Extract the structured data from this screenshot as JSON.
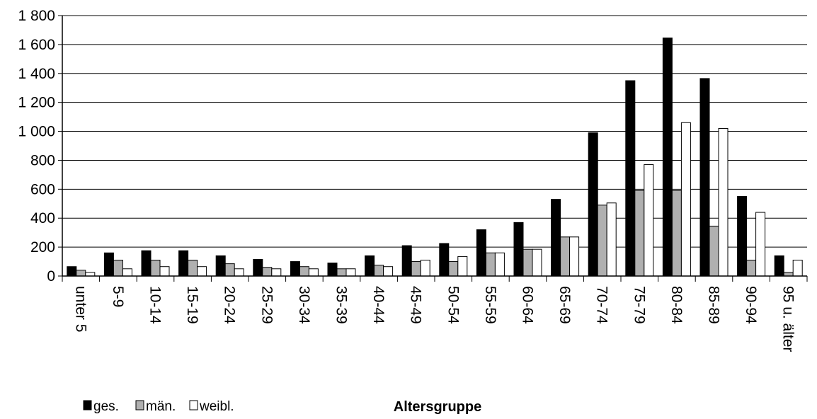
{
  "chart_data": {
    "type": "bar",
    "title": "",
    "xlabel": "Altersgruppe",
    "ylabel": "",
    "ylim": [
      0,
      1800
    ],
    "yticks": [
      0,
      200,
      400,
      600,
      800,
      1000,
      1200,
      1400,
      1600,
      1800
    ],
    "ytick_labels": [
      "0",
      "200",
      "400",
      "600",
      "800",
      "1 000",
      "1 200",
      "1 400",
      "1 600",
      "1 800"
    ],
    "grid": true,
    "legend_position": "bottom-left",
    "categories": [
      "unter 5",
      "5-9",
      "10-14",
      "15-19",
      "20-24",
      "25-29",
      "30-34",
      "35-39",
      "40-44",
      "45-49",
      "50-54",
      "55-59",
      "60-64",
      "65-69",
      "70-74",
      "75-79",
      "80-84",
      "85-89",
      "90-94",
      "95 u. älter"
    ],
    "series": [
      {
        "name": "ges.",
        "color": "#000000",
        "values": [
          65,
          160,
          175,
          175,
          140,
          115,
          100,
          90,
          140,
          210,
          225,
          320,
          370,
          530,
          990,
          1350,
          1645,
          1365,
          550,
          140
        ]
      },
      {
        "name": "män.",
        "color": "#b0b0b0",
        "values": [
          40,
          110,
          110,
          110,
          85,
          60,
          65,
          50,
          75,
          100,
          100,
          160,
          185,
          270,
          490,
          590,
          590,
          345,
          110,
          25
        ]
      },
      {
        "name": "weibl.",
        "color": "#ffffff",
        "values": [
          25,
          50,
          65,
          65,
          50,
          50,
          50,
          50,
          65,
          110,
          135,
          160,
          185,
          270,
          505,
          770,
          1060,
          1020,
          440,
          110
        ]
      }
    ]
  }
}
